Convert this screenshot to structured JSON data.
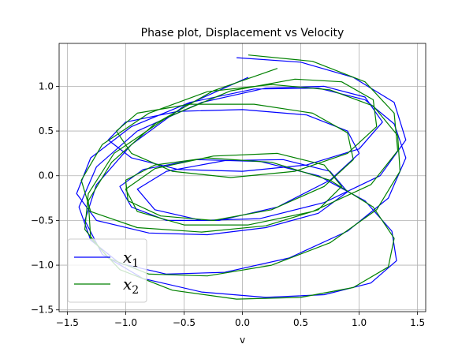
{
  "colors": {
    "background": "#ffffff",
    "grid": "#b0b0b0"
  },
  "chart_data": {
    "type": "line",
    "title": "Phase plot, Displacement vs Velocity",
    "xlabel": "v",
    "ylabel": "",
    "xlim": [
      -1.57,
      1.57
    ],
    "ylim": [
      -1.52,
      1.48
    ],
    "xticks": [
      -1.5,
      -1.0,
      -0.5,
      0.0,
      0.5,
      1.0,
      1.5
    ],
    "xtick_labels": [
      "−1.5",
      "−1.0",
      "−0.5",
      "0.0",
      "0.5",
      "1.0",
      "1.5"
    ],
    "yticks": [
      -1.5,
      -1.0,
      -0.5,
      0.0,
      0.5,
      1.0
    ],
    "ytick_labels": [
      "−1.5",
      "−1.0",
      "−0.5",
      "0.0",
      "0.5",
      "1.0"
    ],
    "grid": true,
    "legend_position": "lower-left",
    "series": [
      {
        "name": "x_1",
        "legend_base": "x",
        "legend_sub": "1",
        "color": "#0000ff",
        "x": [
          -0.05,
          0.5,
          0.95,
          1.3,
          1.4,
          1.18,
          0.7,
          0.15,
          -0.35,
          -0.75,
          -0.9,
          -0.65,
          -0.15,
          0.35,
          0.75,
          0.9,
          0.65,
          0.2,
          -0.3,
          -0.8,
          -1.25,
          -1.42,
          -1.3,
          -0.95,
          -0.45,
          0.1,
          0.65,
          1.05,
          1.3,
          1.4,
          1.25,
          0.9,
          0.4,
          -0.15,
          -0.65,
          -1.05,
          -1.3,
          -1.4,
          -1.25,
          -0.9,
          -0.35,
          0.2,
          0.7,
          1.05,
          1.2,
          1.0,
          0.55,
          0.0,
          -0.55,
          -0.95,
          -1.15,
          -1.0,
          -0.55,
          0.0,
          0.55,
          0.9,
          1.0,
          0.75,
          0.3,
          -0.2,
          -0.65,
          -0.95,
          -1.05,
          -0.85,
          -0.4,
          0.15,
          0.65,
          1.05,
          1.28,
          1.32,
          1.1,
          0.7,
          0.2,
          -0.35,
          -0.85,
          -1.2,
          -1.35,
          -1.25,
          -0.95,
          -0.5,
          0.05
        ],
        "y": [
          1.32,
          1.27,
          1.1,
          0.82,
          0.4,
          0.0,
          -0.3,
          -0.48,
          -0.5,
          -0.38,
          -0.15,
          0.05,
          0.17,
          0.18,
          0.05,
          -0.18,
          -0.42,
          -0.58,
          -0.66,
          -0.64,
          -0.5,
          -0.2,
          0.2,
          0.55,
          0.82,
          0.97,
          0.98,
          0.85,
          0.58,
          0.2,
          -0.25,
          -0.62,
          -0.92,
          -1.08,
          -1.1,
          -0.98,
          -0.72,
          -0.35,
          0.1,
          0.5,
          0.82,
          0.98,
          1.0,
          0.88,
          0.6,
          0.3,
          0.12,
          0.05,
          0.07,
          0.2,
          0.4,
          0.6,
          0.72,
          0.74,
          0.68,
          0.5,
          0.25,
          -0.05,
          -0.35,
          -0.5,
          -0.5,
          -0.35,
          -0.12,
          0.07,
          0.18,
          0.16,
          0.0,
          -0.28,
          -0.62,
          -0.95,
          -1.2,
          -1.33,
          -1.36,
          -1.3,
          -1.15,
          -0.88,
          -0.5,
          -0.1,
          0.35,
          0.78,
          1.1
        ]
      },
      {
        "name": "x_2",
        "legend_base": "x",
        "legend_sub": "2",
        "color": "#008000",
        "x": [
          0.05,
          0.6,
          1.05,
          1.3,
          1.33,
          1.1,
          0.6,
          0.05,
          -0.5,
          -0.9,
          -1.0,
          -0.75,
          -0.25,
          0.3,
          0.7,
          0.85,
          0.65,
          0.2,
          -0.35,
          -0.9,
          -1.3,
          -1.38,
          -1.2,
          -0.8,
          -0.3,
          0.25,
          0.75,
          1.12,
          1.33,
          1.35,
          1.15,
          0.75,
          0.25,
          -0.3,
          -0.8,
          -1.15,
          -1.35,
          -1.32,
          -1.1,
          -0.65,
          -0.1,
          0.45,
          0.85,
          1.12,
          1.15,
          0.9,
          0.45,
          -0.1,
          -0.6,
          -0.95,
          -1.08,
          -0.9,
          -0.45,
          0.1,
          0.6,
          0.9,
          0.95,
          0.7,
          0.25,
          -0.25,
          -0.7,
          -0.98,
          -1.0,
          -0.75,
          -0.3,
          0.25,
          0.75,
          1.12,
          1.3,
          1.25,
          0.95,
          0.5,
          -0.05,
          -0.6,
          -1.05,
          -1.3,
          -1.32,
          -1.12,
          -0.75,
          -0.25,
          0.3
        ],
        "y": [
          1.35,
          1.28,
          1.05,
          0.7,
          0.28,
          -0.1,
          -0.4,
          -0.55,
          -0.55,
          -0.4,
          -0.15,
          0.08,
          0.22,
          0.25,
          0.12,
          -0.12,
          -0.38,
          -0.56,
          -0.63,
          -0.58,
          -0.4,
          -0.05,
          0.35,
          0.7,
          0.94,
          1.02,
          0.96,
          0.78,
          0.45,
          0.05,
          -0.38,
          -0.75,
          -1.0,
          -1.12,
          -1.1,
          -0.92,
          -0.6,
          -0.2,
          0.25,
          0.65,
          0.95,
          1.08,
          1.05,
          0.85,
          0.55,
          0.25,
          0.05,
          -0.02,
          0.05,
          0.25,
          0.5,
          0.7,
          0.8,
          0.8,
          0.7,
          0.48,
          0.18,
          -0.12,
          -0.38,
          -0.5,
          -0.45,
          -0.28,
          -0.05,
          0.12,
          0.2,
          0.15,
          -0.05,
          -0.35,
          -0.7,
          -1.02,
          -1.25,
          -1.36,
          -1.38,
          -1.28,
          -1.05,
          -0.7,
          -0.28,
          0.15,
          0.58,
          0.95,
          1.2
        ]
      }
    ]
  }
}
